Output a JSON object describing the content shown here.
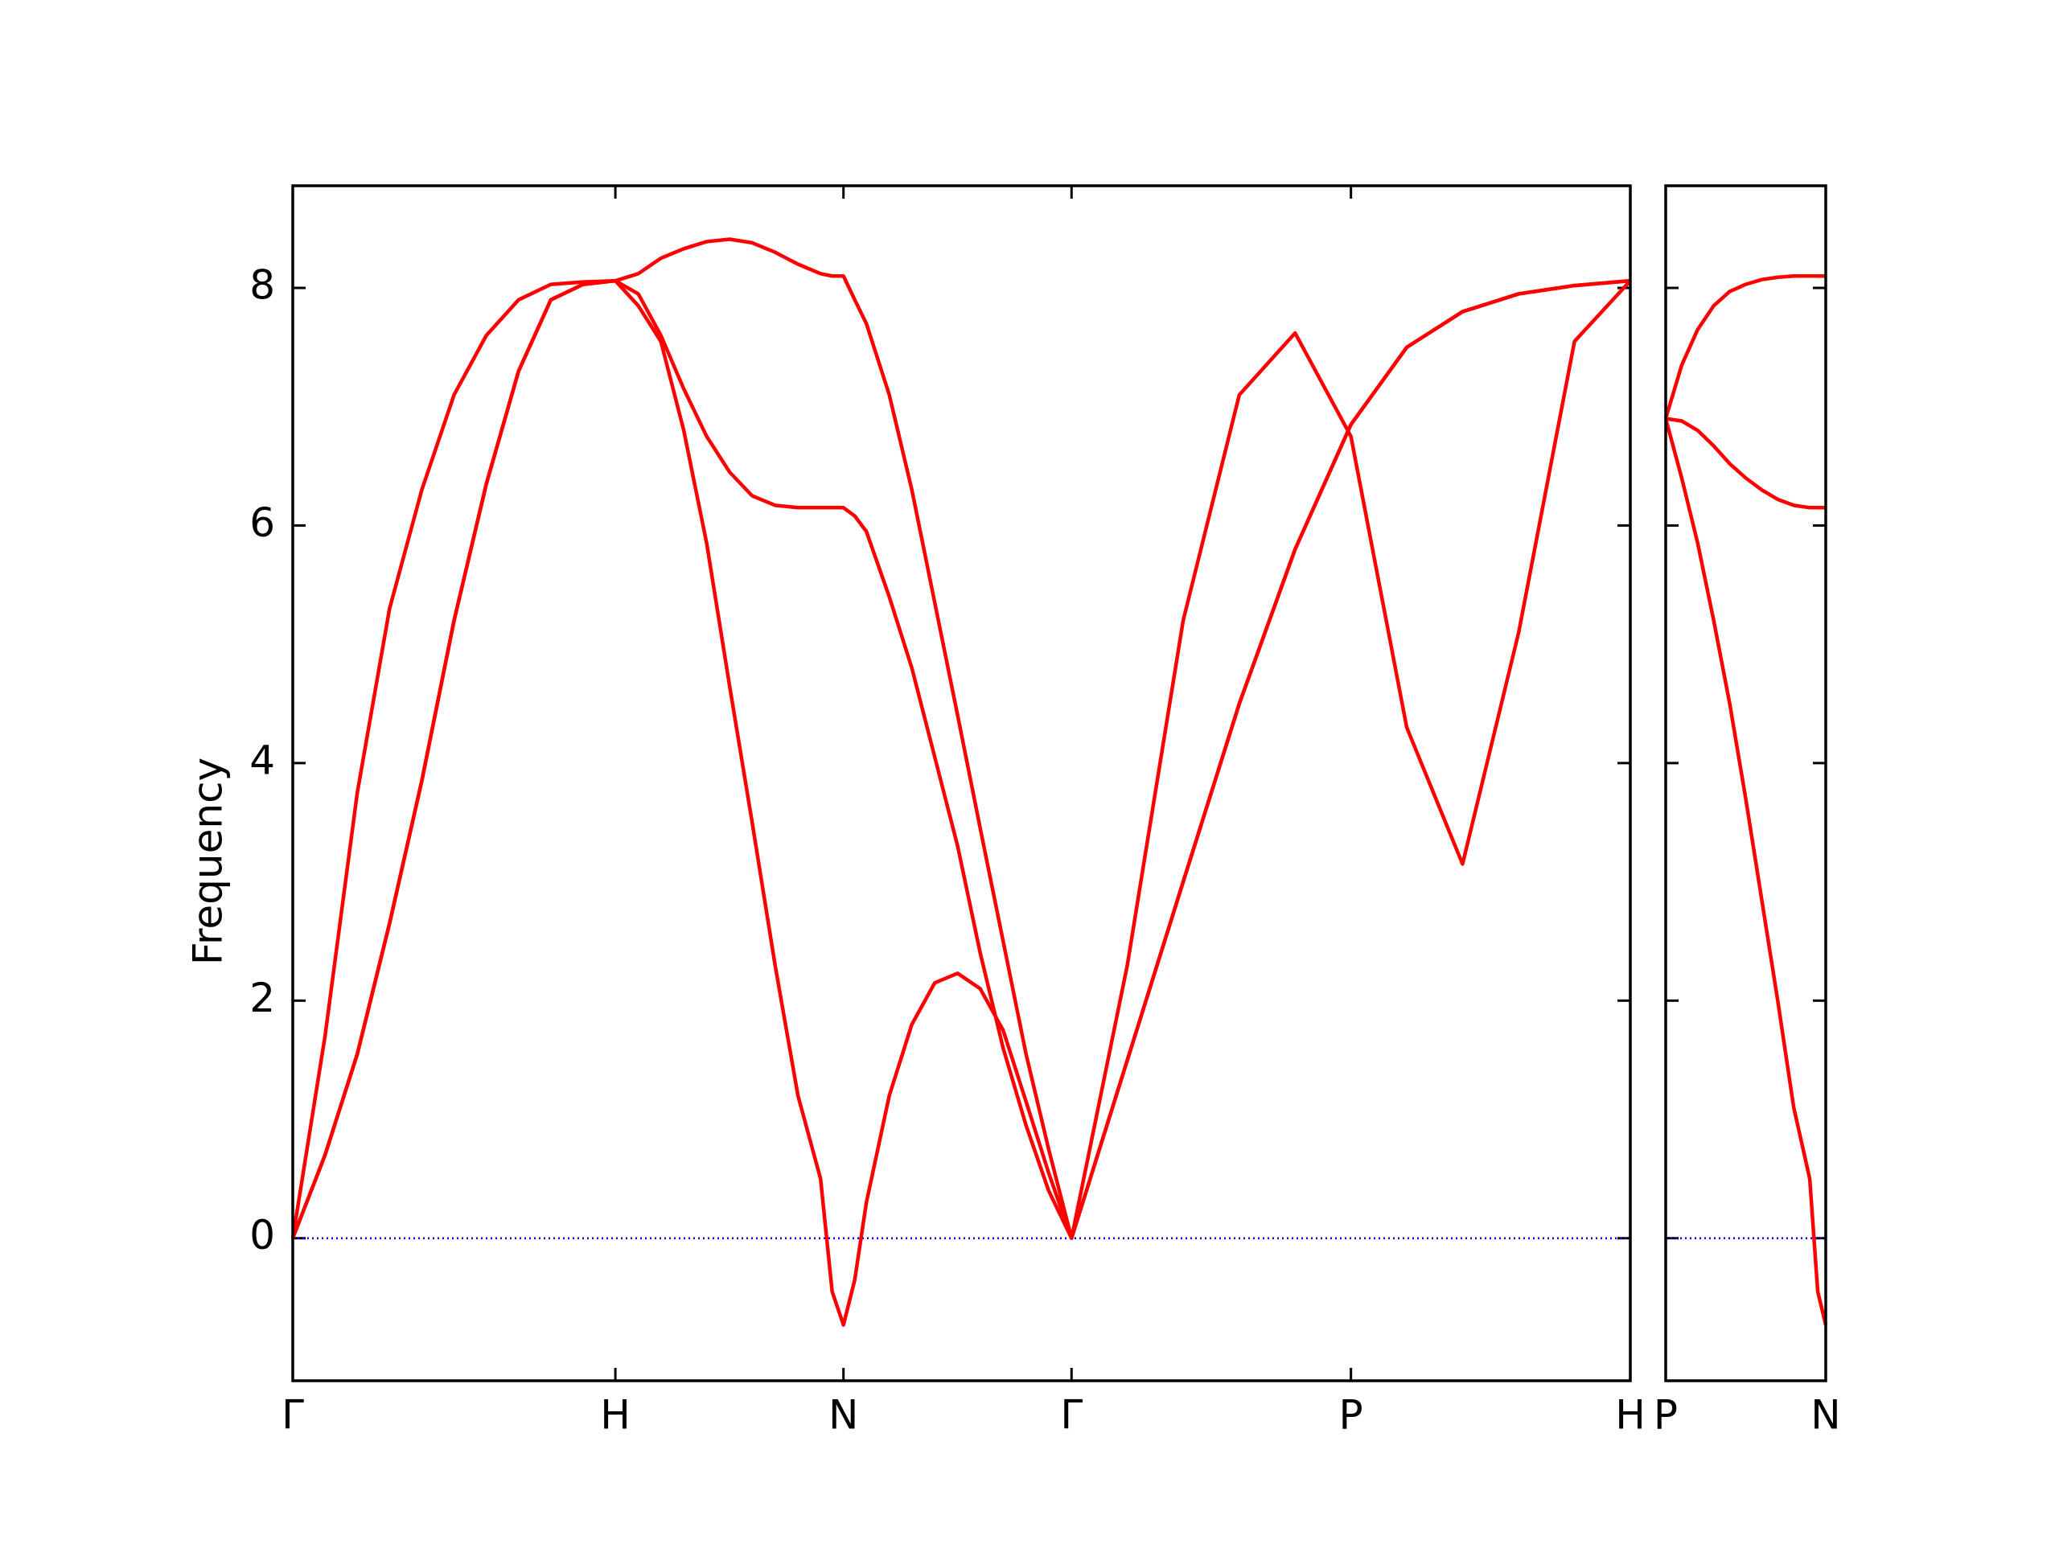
{
  "chart_data": [
    {
      "type": "line",
      "ylabel": "Frequency",
      "x": [
        0,
        0.1,
        0.2,
        0.3,
        0.4,
        0.5,
        0.6,
        0.7,
        0.8,
        0.9,
        1.0,
        1.071,
        1.141,
        1.212,
        1.283,
        1.354,
        1.424,
        1.495,
        1.566,
        1.636,
        1.672,
        1.707,
        1.742,
        1.778,
        1.849,
        1.919,
        1.99,
        2.061,
        2.131,
        2.202,
        2.273,
        2.343,
        2.414,
        2.587,
        2.76,
        2.934,
        3.107,
        3.28,
        3.453,
        3.626,
        3.8,
        3.973,
        4.146
      ],
      "series": [
        {
          "color": "#ff0000",
          "values": [
            0,
            1.7,
            3.75,
            5.3,
            6.3,
            7.1,
            7.6,
            7.9,
            8.03,
            8.05,
            8.06,
            8.12,
            8.25,
            8.33,
            8.39,
            8.41,
            8.38,
            8.3,
            8.2,
            8.12,
            8.1,
            8.1,
            7.9,
            7.7,
            7.1,
            6.3,
            5.35,
            4.4,
            3.45,
            2.5,
            1.55,
            0.75,
            0,
            2.3,
            5.2,
            7.1,
            7.62,
            6.75,
            4.3,
            3.15,
            5.1,
            7.55,
            8.06
          ]
        },
        {
          "color": "#ff0000",
          "values": [
            0,
            0.7,
            1.55,
            2.65,
            3.85,
            5.2,
            6.35,
            7.3,
            7.9,
            8.03,
            8.06,
            7.95,
            7.6,
            7.15,
            6.75,
            6.45,
            6.25,
            6.17,
            6.15,
            6.15,
            6.15,
            6.15,
            6.08,
            5.95,
            5.4,
            4.8,
            4.05,
            3.3,
            2.4,
            1.6,
            0.95,
            0.4,
            0,
            1.5,
            3.0,
            4.5,
            5.8,
            6.85,
            7.5,
            7.8,
            7.95,
            8.02,
            8.06
          ]
        },
        {
          "color": "#ff0000",
          "values": [
            0,
            0.7,
            1.55,
            2.65,
            3.85,
            5.2,
            6.35,
            7.3,
            7.9,
            8.03,
            8.06,
            7.85,
            7.55,
            6.8,
            5.85,
            4.65,
            3.5,
            2.3,
            1.2,
            0.5,
            -0.45,
            -0.73,
            -0.35,
            0.3,
            1.2,
            1.8,
            2.15,
            2.23,
            2.1,
            1.75,
            1.15,
            0.55,
            0,
            1.5,
            3.0,
            4.5,
            5.8,
            6.85,
            7.5,
            7.8,
            7.95,
            8.02,
            8.06
          ]
        }
      ],
      "xlim": [
        0,
        4.146
      ],
      "xticks": [
        {
          "value": 0,
          "label": "Γ"
        },
        {
          "value": 1.0,
          "label": "H"
        },
        {
          "value": 1.707,
          "label": "N"
        },
        {
          "value": 2.414,
          "label": "Γ"
        },
        {
          "value": 3.28,
          "label": "P"
        },
        {
          "value": 4.146,
          "label": "H"
        }
      ],
      "ylim": [
        -1.2,
        8.86
      ],
      "yticks": [
        0,
        2,
        4,
        6,
        8
      ],
      "ytick_labels": true,
      "zero_line": {
        "color": "#0000ff",
        "style": "dotted"
      }
    },
    {
      "type": "line",
      "x": [
        0,
        0.05,
        0.1,
        0.15,
        0.2,
        0.25,
        0.3,
        0.35,
        0.4,
        0.45,
        0.475,
        0.5
      ],
      "series": [
        {
          "color": "#ff0000",
          "values": [
            6.9,
            7.35,
            7.65,
            7.85,
            7.97,
            8.03,
            8.07,
            8.09,
            8.1,
            8.1,
            8.1,
            8.1
          ]
        },
        {
          "color": "#ff0000",
          "values": [
            6.9,
            6.88,
            6.8,
            6.67,
            6.52,
            6.4,
            6.3,
            6.22,
            6.17,
            6.15,
            6.15,
            6.15
          ]
        },
        {
          "color": "#ff0000",
          "values": [
            6.9,
            6.4,
            5.85,
            5.2,
            4.5,
            3.7,
            2.85,
            2.0,
            1.1,
            0.5,
            -0.45,
            -0.73
          ]
        }
      ],
      "xlim": [
        0,
        0.5
      ],
      "xticks": [
        {
          "value": 0,
          "label": "P"
        },
        {
          "value": 0.5,
          "label": "N"
        }
      ],
      "ylim": [
        -1.2,
        8.86
      ],
      "yticks": [
        0,
        2,
        4,
        6,
        8
      ],
      "ytick_labels": false,
      "zero_line": {
        "color": "#0000ff",
        "style": "dotted"
      }
    }
  ]
}
